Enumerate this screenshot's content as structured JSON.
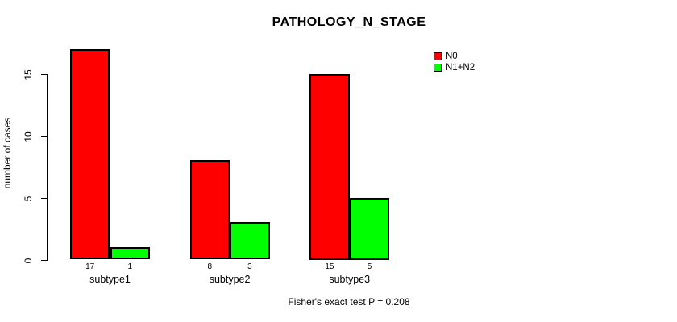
{
  "chart_data": {
    "type": "bar",
    "title": "PATHOLOGY_N_STAGE",
    "xlabel": "",
    "ylabel": "number of cases",
    "categories": [
      "subtype1",
      "subtype2",
      "subtype3"
    ],
    "series": [
      {
        "name": "N0",
        "color": "#ff0000",
        "values": [
          17,
          8,
          15
        ]
      },
      {
        "name": "N1+N2",
        "color": "#00ff00",
        "values": [
          1,
          3,
          5
        ]
      }
    ],
    "bar_value_labels": [
      [
        "17",
        "1"
      ],
      [
        "8",
        "3"
      ],
      [
        "15",
        "5"
      ]
    ],
    "yticks": [
      "0",
      "5",
      "10",
      "15"
    ],
    "ytick_values": [
      0,
      5,
      10,
      15
    ],
    "ylim": [
      0,
      17
    ],
    "grid": false,
    "legend_position": "top-right",
    "annotation": "Fisher's exact test P = 0.208"
  }
}
